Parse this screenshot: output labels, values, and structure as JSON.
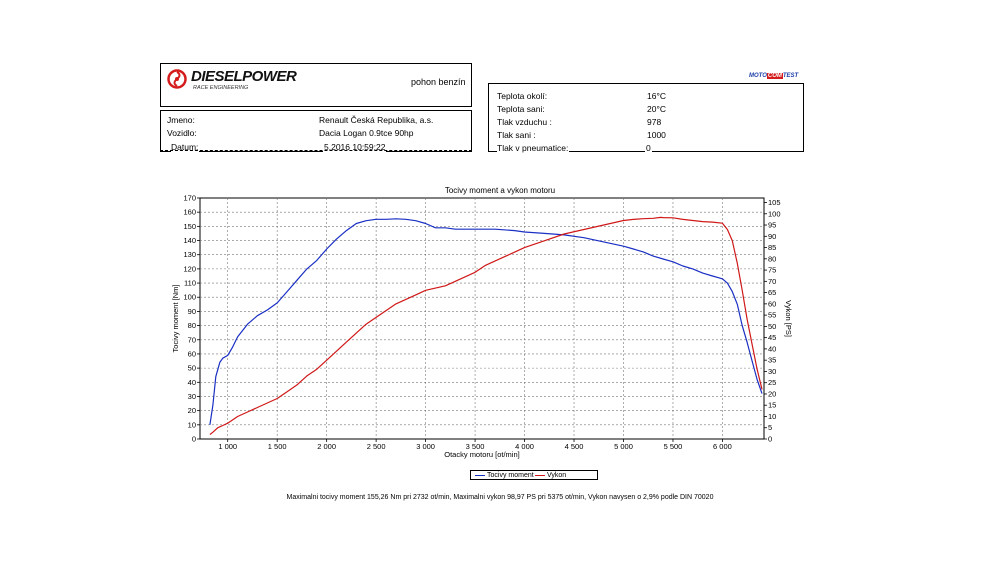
{
  "header": {
    "brand_name": "DIESELPOWER",
    "brand_sub": "RACE ENGINEERING",
    "fuel_type": "pohon benzín",
    "mototest_left": "MOTO",
    "mototest_mid": "COM",
    "mototest_right": "TEST"
  },
  "vehicle": {
    "rows": [
      {
        "label": "Jmeno:",
        "value": "Renault Česká Republika, a.s."
      },
      {
        "label": "Vozidlo:",
        "value": "Dacia Logan 0.9tce 90hp"
      },
      {
        "label": "Datum:",
        "value": "5.2016 10:59:22"
      }
    ]
  },
  "conditions": {
    "rows": [
      {
        "label": "Teplota okolí:",
        "value": "16°C"
      },
      {
        "label": "Teplota sani:",
        "value": "20°C"
      },
      {
        "label": "Tlak vzduchu :",
        "value": "978"
      },
      {
        "label": "Tlak sani :",
        "value": "1000"
      },
      {
        "label": "Tlak v pneumatice:",
        "value": "0"
      }
    ]
  },
  "chart_data": {
    "type": "line",
    "title": "Tocivy moment a vykon motoru",
    "xlabel": "Otacky motoru [ot/min]",
    "ylabel": "Tocivy moment [Nm]",
    "y2label": "Vykon [PS]",
    "xlim": [
      720,
      6420
    ],
    "ylim": [
      0,
      170
    ],
    "y2lim": [
      0,
      107
    ],
    "x_ticks": [
      1000,
      1500,
      2000,
      2500,
      3000,
      3500,
      4000,
      4500,
      5000,
      5500,
      6000
    ],
    "x_tick_labels": [
      "1 000",
      "1 500",
      "2 000",
      "2 500",
      "3 000",
      "3 500",
      "4 000",
      "4 500",
      "5 000",
      "5 500",
      "6 000"
    ],
    "y_ticks": [
      0,
      10,
      20,
      30,
      40,
      50,
      60,
      70,
      80,
      90,
      100,
      110,
      120,
      130,
      140,
      150,
      160,
      170
    ],
    "y2_ticks": [
      0,
      5,
      10,
      15,
      20,
      25,
      30,
      35,
      40,
      45,
      50,
      55,
      60,
      65,
      70,
      75,
      80,
      85,
      90,
      95,
      100,
      105
    ],
    "grid": true,
    "legend_position": "bottom-center",
    "series": [
      {
        "name": "Tocivy moment",
        "axis": "left",
        "color": "#1a2fc4",
        "x": [
          820,
          850,
          880,
          920,
          950,
          1000,
          1050,
          1100,
          1200,
          1300,
          1400,
          1500,
          1600,
          1700,
          1800,
          1900,
          2000,
          2100,
          2200,
          2300,
          2400,
          2500,
          2600,
          2700,
          2800,
          2900,
          3000,
          3100,
          3200,
          3300,
          3500,
          3700,
          3900,
          4000,
          4200,
          4400,
          4600,
          4800,
          5000,
          5100,
          5200,
          5300,
          5400,
          5500,
          5600,
          5700,
          5800,
          5900,
          6000,
          6050,
          6100,
          6150,
          6200,
          6250,
          6300,
          6350,
          6400
        ],
        "y": [
          10,
          24,
          44,
          54,
          57,
          59,
          65,
          72,
          81,
          87,
          91,
          96,
          104,
          112,
          120,
          126,
          134,
          141,
          147,
          152,
          154,
          155,
          155,
          155.3,
          155,
          154,
          152,
          149,
          149,
          148,
          148,
          148,
          147,
          146,
          145,
          144,
          142,
          139,
          136,
          134,
          132,
          129,
          127,
          125,
          122,
          120,
          117,
          115,
          113,
          110,
          104,
          95,
          80,
          68,
          55,
          42,
          32
        ]
      },
      {
        "name": "Vykon",
        "axis": "right",
        "color": "#d01818",
        "x": [
          820,
          850,
          900,
          950,
          1000,
          1100,
          1200,
          1300,
          1400,
          1500,
          1600,
          1700,
          1800,
          1900,
          2000,
          2100,
          2200,
          2300,
          2400,
          2500,
          2600,
          2700,
          2800,
          2900,
          3000,
          3100,
          3200,
          3300,
          3400,
          3500,
          3600,
          3700,
          3800,
          3900,
          4000,
          4200,
          4400,
          4600,
          4800,
          5000,
          5100,
          5200,
          5300,
          5375,
          5400,
          5500,
          5600,
          5700,
          5800,
          5900,
          6000,
          6050,
          6100,
          6150,
          6200,
          6250,
          6300,
          6350,
          6400
        ],
        "y": [
          2,
          3,
          5,
          6,
          7,
          10,
          12,
          14,
          16,
          18,
          21,
          24,
          28,
          31,
          35,
          39,
          43,
          47,
          51,
          54,
          57,
          60,
          62,
          64,
          66,
          67,
          68,
          70,
          72,
          74,
          77,
          79,
          81,
          83,
          85,
          88,
          91,
          93,
          95,
          97,
          97.5,
          97.8,
          98,
          98.4,
          98.3,
          98.2,
          97.5,
          97,
          96.5,
          96.3,
          95.8,
          93,
          88,
          78,
          66,
          53,
          42,
          31,
          22
        ]
      }
    ],
    "summary": "Maximalni tocivy moment 155,26 Nm pri 2732 ot/min,  Maximalni vykon 98,97 PS pri 5375 ot/min,  Vykon navysen o 2,9% podle DIN 70020"
  }
}
